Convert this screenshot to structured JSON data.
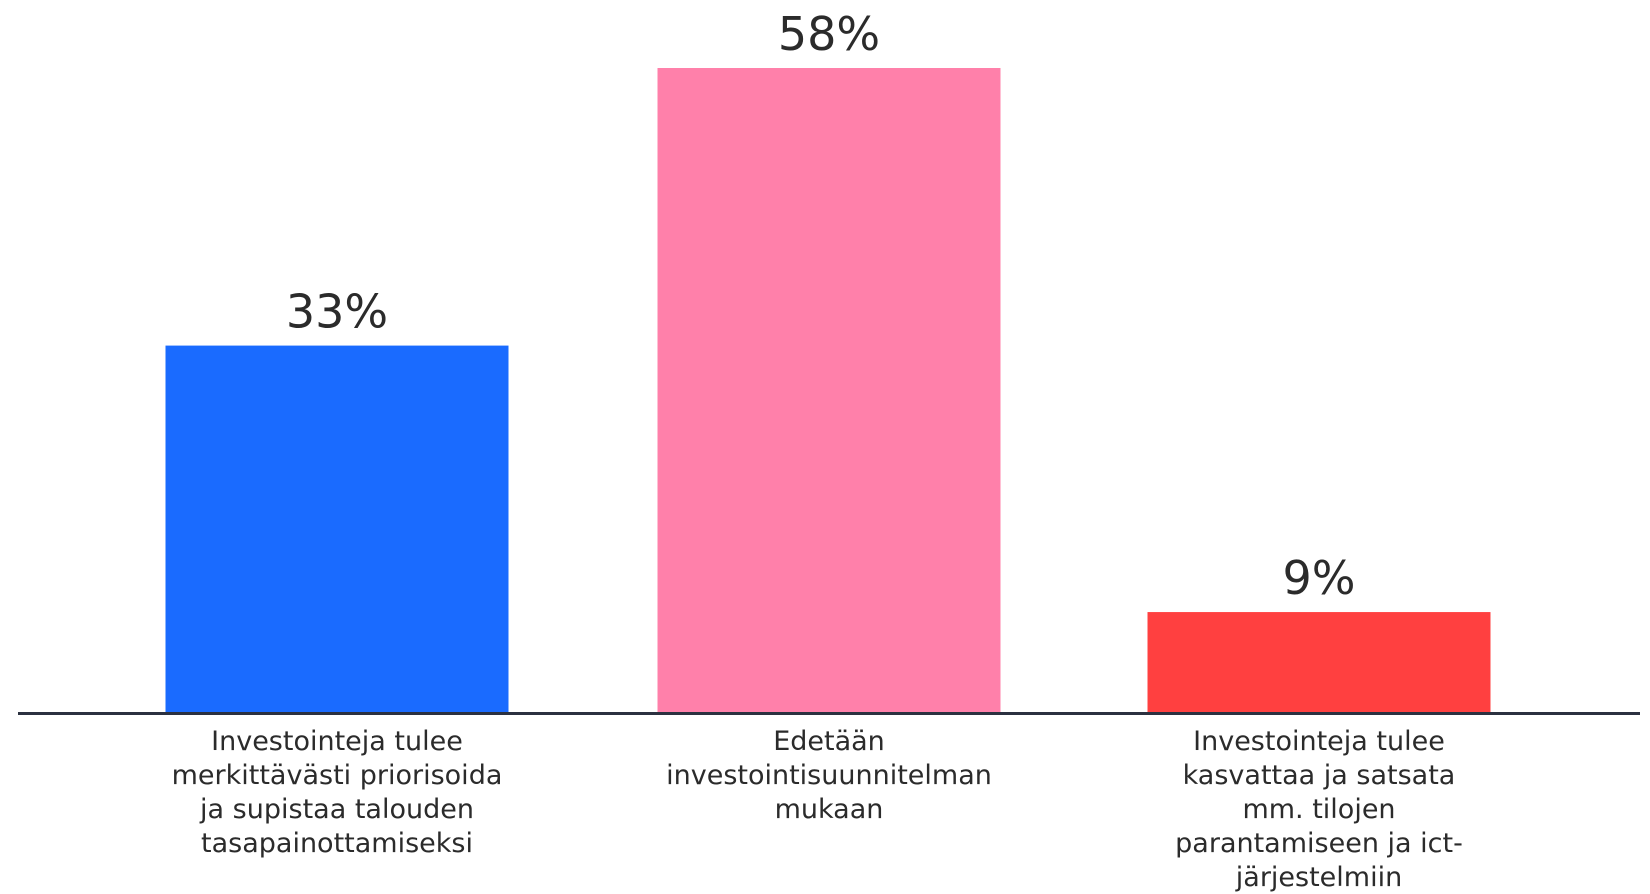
{
  "chart_data": {
    "type": "bar",
    "categories": [
      [
        "Investointeja tulee",
        "merkittävästi priorisoida",
        "ja supistaa talouden",
        "tasapainottamiseksi"
      ],
      [
        "Edetään",
        "investointisuunnitelman",
        "mukaan"
      ],
      [
        "Investointeja tulee",
        "kasvattaa ja satsata",
        "mm. tilojen",
        "parantamiseen ja ict-",
        "järjestelmiin"
      ]
    ],
    "values": [
      33,
      58,
      9
    ],
    "value_labels": [
      "33%",
      "58%",
      "9%"
    ],
    "colors": [
      "#1a6bff",
      "#ff80aa",
      "#ff4040"
    ],
    "axis_color": "#2b3140",
    "title": "",
    "xlabel": "",
    "ylabel": "",
    "ylim": [
      0,
      58
    ],
    "grid": false,
    "legend": "none"
  }
}
